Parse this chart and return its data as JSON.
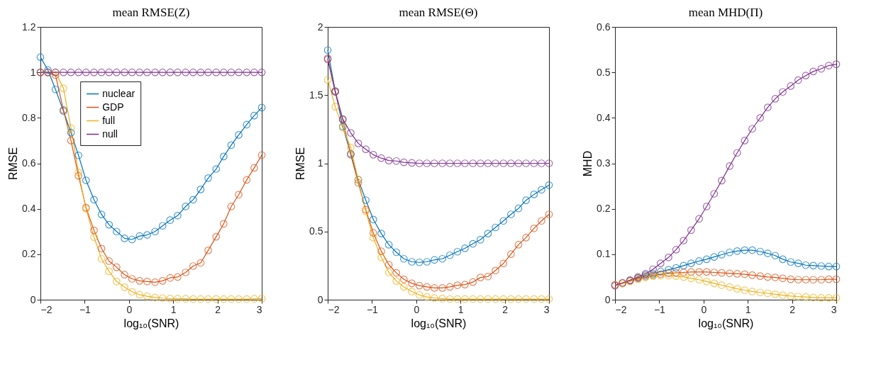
{
  "chart_data": [
    {
      "type": "line",
      "title": "mean RMSE(Z)",
      "xlabel": "log₁₀(SNR)",
      "ylabel": "RMSE",
      "legend": "top",
      "marker": "circle",
      "x": [
        -2,
        -1.83,
        -1.66,
        -1.48,
        -1.31,
        -1.14,
        -0.97,
        -0.79,
        -0.62,
        -0.45,
        -0.28,
        -0.1,
        0.07,
        0.24,
        0.41,
        0.59,
        0.76,
        0.93,
        1.1,
        1.28,
        1.45,
        1.62,
        1.79,
        1.97,
        2.14,
        2.31,
        2.48,
        2.66,
        2.83,
        3
      ],
      "xlim": [
        -2,
        3
      ],
      "xticks": [
        -2,
        -1,
        0,
        1,
        2,
        3
      ],
      "ylim": [
        0,
        1.2
      ],
      "yticks": [
        0,
        0.2,
        0.4,
        0.6,
        0.8,
        1,
        1.2
      ],
      "series": [
        {
          "name": "nuclear",
          "color": "#0072bd",
          "values": [
            1.067,
            1.01,
            0.925,
            0.83,
            0.735,
            0.635,
            0.525,
            0.44,
            0.375,
            0.33,
            0.3,
            0.27,
            0.265,
            0.28,
            0.285,
            0.3,
            0.325,
            0.35,
            0.37,
            0.41,
            0.44,
            0.485,
            0.535,
            0.575,
            0.63,
            0.68,
            0.725,
            0.77,
            0.81,
            0.845
          ]
        },
        {
          "name": "GDP",
          "color": "#d95319",
          "values": [
            1.0,
            1.0,
            0.988,
            0.835,
            0.7,
            0.545,
            0.405,
            0.305,
            0.225,
            0.17,
            0.143,
            0.11,
            0.092,
            0.083,
            0.08,
            0.077,
            0.083,
            0.096,
            0.1,
            0.12,
            0.148,
            0.162,
            0.217,
            0.277,
            0.334,
            0.41,
            0.462,
            0.527,
            0.58,
            0.636
          ]
        },
        {
          "name": "full",
          "color": "#edb120",
          "values": [
            1.0,
            1.0,
            1.0,
            0.93,
            0.755,
            0.56,
            0.4,
            0.275,
            0.18,
            0.125,
            0.08,
            0.055,
            0.035,
            0.022,
            0.015,
            0.01,
            0.007,
            0.005,
            0.004,
            0.004,
            0.003,
            0.003,
            0.003,
            0.003,
            0.003,
            0.003,
            0.003,
            0.003,
            0.004,
            0.005
          ]
        },
        {
          "name": "null",
          "color": "#7e2f8e",
          "values": [
            1,
            1,
            1,
            1,
            1,
            1,
            1,
            1,
            1,
            1,
            1,
            1,
            1,
            1,
            1,
            1,
            1,
            1,
            1,
            1,
            1,
            1,
            1,
            1,
            1,
            1,
            1,
            1,
            1,
            1
          ]
        }
      ]
    },
    {
      "type": "line",
      "title": "mean RMSE(Θ)",
      "xlabel": "log₁₀(SNR)",
      "ylabel": "RMSE",
      "marker": "circle",
      "x": [
        -2,
        -1.83,
        -1.66,
        -1.48,
        -1.31,
        -1.14,
        -0.97,
        -0.79,
        -0.62,
        -0.45,
        -0.28,
        -0.1,
        0.07,
        0.24,
        0.41,
        0.59,
        0.76,
        0.93,
        1.1,
        1.28,
        1.45,
        1.62,
        1.79,
        1.97,
        2.14,
        2.31,
        2.48,
        2.66,
        2.83,
        3
      ],
      "xlim": [
        -2,
        3
      ],
      "xticks": [
        -2,
        -1,
        0,
        1,
        2,
        3
      ],
      "ylim": [
        0,
        2
      ],
      "yticks": [
        0,
        0.5,
        1,
        1.5,
        2
      ],
      "series": [
        {
          "color": "#0072bd",
          "values": [
            1.83,
            1.53,
            1.27,
            1.07,
            0.88,
            0.73,
            0.588,
            0.485,
            0.403,
            0.348,
            0.3,
            0.278,
            0.274,
            0.278,
            0.292,
            0.3,
            0.326,
            0.352,
            0.377,
            0.41,
            0.44,
            0.485,
            0.53,
            0.578,
            0.626,
            0.669,
            0.729,
            0.772,
            0.806,
            0.84
          ]
        },
        {
          "color": "#d95319",
          "values": [
            1.77,
            1.53,
            1.32,
            1.063,
            0.857,
            0.66,
            0.49,
            0.355,
            0.257,
            0.197,
            0.149,
            0.12,
            0.103,
            0.094,
            0.086,
            0.086,
            0.094,
            0.106,
            0.111,
            0.129,
            0.163,
            0.17,
            0.214,
            0.266,
            0.334,
            0.403,
            0.455,
            0.523,
            0.578,
            0.626
          ]
        },
        {
          "color": "#edb120",
          "values": [
            1.612,
            1.415,
            1.26,
            1.115,
            0.88,
            0.647,
            0.455,
            0.31,
            0.2,
            0.137,
            0.094,
            0.06,
            0.035,
            0.02,
            0.012,
            0.008,
            0.005,
            0.005,
            0.005,
            0.005,
            0.005,
            0.005,
            0.005,
            0.005,
            0.005,
            0.005,
            0.005,
            0.005,
            0.005,
            0.005
          ]
        },
        {
          "color": "#7e2f8e",
          "values": [
            1.763,
            1.523,
            1.324,
            1.223,
            1.146,
            1.103,
            1.063,
            1.038,
            1.02,
            1.017,
            1.007,
            1.003,
            1,
            1,
            1,
            1,
            1,
            1,
            1,
            1,
            1,
            1,
            1,
            1,
            1,
            1,
            1,
            1,
            1,
            1
          ]
        }
      ]
    },
    {
      "type": "line",
      "title": "mean MHD(Π)",
      "xlabel": "log₁₀(SNR)",
      "ylabel": "MHD",
      "marker": "circle",
      "x": [
        -2,
        -1.83,
        -1.66,
        -1.48,
        -1.31,
        -1.14,
        -0.97,
        -0.79,
        -0.62,
        -0.45,
        -0.28,
        -0.1,
        0.07,
        0.24,
        0.41,
        0.59,
        0.76,
        0.93,
        1.1,
        1.28,
        1.45,
        1.62,
        1.79,
        1.97,
        2.14,
        2.31,
        2.48,
        2.66,
        2.83,
        3
      ],
      "xlim": [
        -2,
        3
      ],
      "xticks": [
        -2,
        -1,
        0,
        1,
        2,
        3
      ],
      "ylim": [
        0,
        0.6
      ],
      "yticks": [
        0,
        0.1,
        0.2,
        0.3,
        0.4,
        0.5,
        0.6
      ],
      "series": [
        {
          "color": "#0072bd",
          "values": [
            null,
            null,
            0.042,
            0.048,
            0.054,
            0.057,
            0.062,
            0.066,
            0.07,
            0.075,
            0.08,
            0.085,
            0.089,
            0.094,
            0.099,
            0.104,
            0.107,
            0.109,
            0.109,
            0.106,
            0.102,
            0.097,
            0.089,
            0.083,
            0.08,
            0.076,
            0.075,
            0.074,
            0.073,
            0.073
          ]
        },
        {
          "color": "#d95319",
          "values": [
            0.033,
            0.037,
            0.042,
            0.047,
            0.051,
            0.054,
            0.056,
            0.058,
            0.059,
            0.06,
            0.061,
            0.061,
            0.061,
            0.06,
            0.059,
            0.058,
            0.057,
            0.056,
            0.054,
            0.052,
            0.05,
            0.049,
            0.047,
            0.045,
            0.044,
            0.044,
            0.044,
            0.044,
            0.045,
            0.045
          ]
        },
        {
          "color": "#edb120",
          "values": [
            0.032,
            0.035,
            0.04,
            0.045,
            0.049,
            0.052,
            0.053,
            0.053,
            0.052,
            0.05,
            0.047,
            0.044,
            0.04,
            0.036,
            0.032,
            0.028,
            0.024,
            0.021,
            0.018,
            0.016,
            0.014,
            0.012,
            0.01,
            0.008,
            0.007,
            0.006,
            0.005,
            0.004,
            0.004,
            0.004
          ]
        },
        {
          "color": "#7e2f8e",
          "values": [
            0.031,
            0.037,
            0.043,
            0.05,
            0.057,
            0.067,
            0.08,
            0.093,
            0.11,
            0.13,
            0.153,
            0.178,
            0.205,
            0.233,
            0.262,
            0.294,
            0.323,
            0.35,
            0.376,
            0.4,
            0.423,
            0.442,
            0.457,
            0.47,
            0.483,
            0.493,
            0.502,
            0.508,
            0.515,
            0.518
          ]
        }
      ]
    }
  ]
}
